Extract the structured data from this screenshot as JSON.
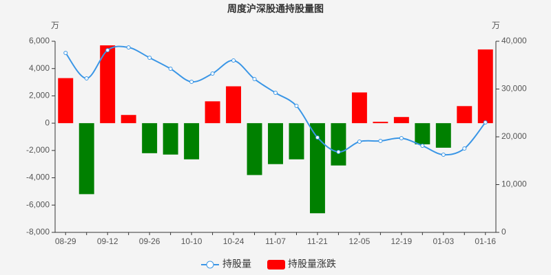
{
  "chart_data": {
    "type": "bar-line",
    "title": "周度沪深股通持股量图",
    "y_unit": "万",
    "y2_unit": "万",
    "categories": [
      "08-29",
      null,
      "09-12",
      null,
      "09-26",
      null,
      "10-10",
      null,
      "10-24",
      null,
      "11-07",
      null,
      "11-21",
      null,
      "12-05",
      null,
      "12-19",
      null,
      "01-03",
      null,
      "01-16"
    ],
    "series": [
      {
        "name": "持股量",
        "type": "line",
        "axis": "y2",
        "color": "#3a96e6",
        "values": [
          37550,
          32230,
          38130,
          38700,
          36550,
          34250,
          31510,
          33240,
          35970,
          32090,
          29210,
          26470,
          19860,
          16830,
          18990,
          19140,
          19710,
          18130,
          16260,
          17550,
          23020
        ]
      },
      {
        "name": "持股量涨跌",
        "type": "bar",
        "color": "#ff0000",
        "negative_color": "#008000",
        "values": [
          3300,
          -5200,
          5700,
          600,
          -2200,
          -2300,
          -2650,
          1600,
          2700,
          -3800,
          -3000,
          -2650,
          -6600,
          -3100,
          2250,
          100,
          450,
          -1550,
          -1800,
          1250,
          5400
        ]
      }
    ],
    "ylim": [
      -8000,
      6000
    ],
    "yticks": [
      {
        "value": -8000,
        "label": "-8,000"
      },
      {
        "value": -6000,
        "label": "-6,000"
      },
      {
        "value": -4000,
        "label": "-4,000"
      },
      {
        "value": -2000,
        "label": "-2,000"
      },
      0,
      {
        "value": 2000,
        "label": "2,000"
      },
      {
        "value": 4000,
        "label": "4,000"
      },
      {
        "value": 6000,
        "label": "6,000"
      }
    ],
    "y2lim": [
      0,
      40000
    ],
    "y2ticks": [
      0,
      {
        "value": 10000,
        "label": "10,000"
      },
      {
        "value": 20000,
        "label": "20,000"
      },
      {
        "value": 30000,
        "label": "30,000"
      },
      {
        "value": 40000,
        "label": "40,000"
      }
    ]
  }
}
